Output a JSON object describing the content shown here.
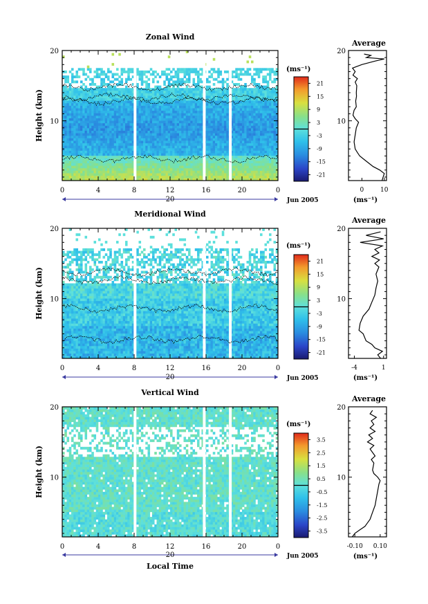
{
  "chart_data": [
    {
      "type": "heatmap",
      "title": "Zonal Wind",
      "ylabel": "Height (km)",
      "xlabel": "",
      "x_ticks": [
        "0",
        "4",
        "8",
        "12",
        "16",
        "20",
        "0"
      ],
      "y_ticks": [
        "10",
        "20"
      ],
      "xlim": [
        0,
        24
      ],
      "ylim": [
        1.5,
        20
      ],
      "date_day": "20",
      "date_label": "Jun 2005",
      "colorbar": {
        "unit": "(ms⁻¹)",
        "ticks": [
          "21",
          "15",
          "9",
          "3",
          "-3",
          "-9",
          "-15",
          "-21"
        ],
        "range": [
          -24,
          24
        ]
      },
      "data_gaps_hours": [
        8.1,
        15.8,
        18.7
      ],
      "average_profile": {
        "title": "Average",
        "xlabel": "(ms⁻¹)",
        "x_ticks": [
          "0",
          "10"
        ],
        "y_ticks": [
          "10",
          "20"
        ],
        "xlim": [
          -6,
          11
        ],
        "ylim": [
          1.5,
          20
        ],
        "points": [
          [
            9,
            1.5
          ],
          [
            9.5,
            2
          ],
          [
            10,
            2.5
          ],
          [
            8,
            3
          ],
          [
            5,
            3.5
          ],
          [
            3,
            4
          ],
          [
            1,
            4.5
          ],
          [
            -1,
            5
          ],
          [
            -2,
            5.5
          ],
          [
            -3,
            6
          ],
          [
            -3.5,
            7
          ],
          [
            -3,
            8
          ],
          [
            -2.5,
            9
          ],
          [
            -1.5,
            9.8
          ],
          [
            -3,
            10.3
          ],
          [
            -4,
            10.8
          ],
          [
            -3.5,
            11.5
          ],
          [
            -2.5,
            12
          ],
          [
            -2.8,
            12.8
          ],
          [
            -2.4,
            13.5
          ],
          [
            -2.5,
            14
          ],
          [
            -2.3,
            15
          ],
          [
            -3,
            15.5
          ],
          [
            -2,
            16
          ],
          [
            -4,
            16.5
          ],
          [
            -3,
            17
          ],
          [
            -4.2,
            17.5
          ],
          [
            0,
            18
          ],
          [
            6,
            18.5
          ],
          [
            10,
            18.8
          ],
          [
            2,
            19
          ],
          [
            4,
            19.3
          ],
          [
            1,
            19.5
          ]
        ]
      }
    },
    {
      "type": "heatmap",
      "title": "Meridional Wind",
      "ylabel": "Height (km)",
      "xlabel": "",
      "x_ticks": [
        "0",
        "4",
        "8",
        "12",
        "16",
        "20",
        "0"
      ],
      "y_ticks": [
        "10",
        "20"
      ],
      "xlim": [
        0,
        24
      ],
      "ylim": [
        1.5,
        20
      ],
      "date_day": "20",
      "date_label": "Jun 2005",
      "colorbar": {
        "unit": "(ms⁻¹)",
        "ticks": [
          "21",
          "15",
          "9",
          "3",
          "-3",
          "-9",
          "-15",
          "-21"
        ],
        "range": [
          -24,
          24
        ]
      },
      "data_gaps_hours": [
        8.1,
        15.8,
        18.7
      ],
      "average_profile": {
        "title": "Average",
        "xlabel": "(ms⁻¹)",
        "x_ticks": [
          "-4",
          "1"
        ],
        "y_ticks": [
          "10",
          "20"
        ],
        "xlim": [
          -5,
          1.5
        ],
        "ylim": [
          1.5,
          20
        ],
        "points": [
          [
            0.5,
            1.5
          ],
          [
            0,
            2
          ],
          [
            0.8,
            2.5
          ],
          [
            -0.5,
            3
          ],
          [
            -1,
            3.5
          ],
          [
            -2,
            4
          ],
          [
            -2.5,
            5
          ],
          [
            -3.2,
            5.5
          ],
          [
            -3,
            6.5
          ],
          [
            -2.5,
            7.5
          ],
          [
            -1.5,
            8.5
          ],
          [
            -1,
            9.5
          ],
          [
            -0.5,
            10.5
          ],
          [
            -0.3,
            11.5
          ],
          [
            0,
            12.5
          ],
          [
            -0.3,
            13.5
          ],
          [
            0.2,
            14.5
          ],
          [
            -0.5,
            15
          ],
          [
            0.3,
            15.5
          ],
          [
            -1,
            16
          ],
          [
            0.2,
            16.5
          ],
          [
            -0.5,
            17
          ],
          [
            0.8,
            17.5
          ],
          [
            -3,
            18
          ],
          [
            1,
            18.5
          ],
          [
            -2,
            19
          ],
          [
            0.5,
            19.5
          ]
        ]
      }
    },
    {
      "type": "heatmap",
      "title": "Vertical Wind",
      "ylabel": "Height (km)",
      "xlabel": "Local Time",
      "x_ticks": [
        "0",
        "4",
        "8",
        "12",
        "16",
        "20",
        "0"
      ],
      "y_ticks": [
        "10",
        "20"
      ],
      "xlim": [
        0,
        24
      ],
      "ylim": [
        1.5,
        20
      ],
      "date_day": "20",
      "date_label": "Jun 2005",
      "colorbar": {
        "unit": "(ms⁻¹)",
        "ticks": [
          "3.5",
          "2.5",
          "1.5",
          "0.5",
          "-0.5",
          "-1.5",
          "-2.5",
          "-3.5"
        ],
        "range": [
          -4,
          4
        ]
      },
      "data_gaps_hours": [
        8.1,
        15.8,
        18.7
      ],
      "average_profile": {
        "title": "Average",
        "xlabel": "(ms⁻¹)",
        "x_ticks": [
          "-0.10",
          "0.10"
        ],
        "y_ticks": [
          "10",
          "20"
        ],
        "xlim": [
          -0.15,
          0.15
        ],
        "ylim": [
          1.5,
          20
        ],
        "points": [
          [
            -0.12,
            1.5
          ],
          [
            -0.1,
            2
          ],
          [
            -0.06,
            2.5
          ],
          [
            -0.02,
            3
          ],
          [
            0,
            3.5
          ],
          [
            0.02,
            4
          ],
          [
            0.04,
            5
          ],
          [
            0.06,
            6
          ],
          [
            0.07,
            7
          ],
          [
            0.08,
            8
          ],
          [
            0.09,
            9
          ],
          [
            0.1,
            9.5
          ],
          [
            0.08,
            10
          ],
          [
            0.05,
            10.5
          ],
          [
            0.04,
            11
          ],
          [
            0.05,
            12
          ],
          [
            0.03,
            12.5
          ],
          [
            0.06,
            13
          ],
          [
            0.02,
            14
          ],
          [
            0.05,
            14.5
          ],
          [
            0,
            15
          ],
          [
            0.04,
            15.5
          ],
          [
            0.01,
            16
          ],
          [
            0.06,
            16.5
          ],
          [
            0.02,
            17
          ],
          [
            0.05,
            17.5
          ],
          [
            0.03,
            18
          ],
          [
            0.07,
            18.5
          ],
          [
            0.02,
            19
          ],
          [
            0.04,
            19.5
          ]
        ]
      }
    }
  ]
}
